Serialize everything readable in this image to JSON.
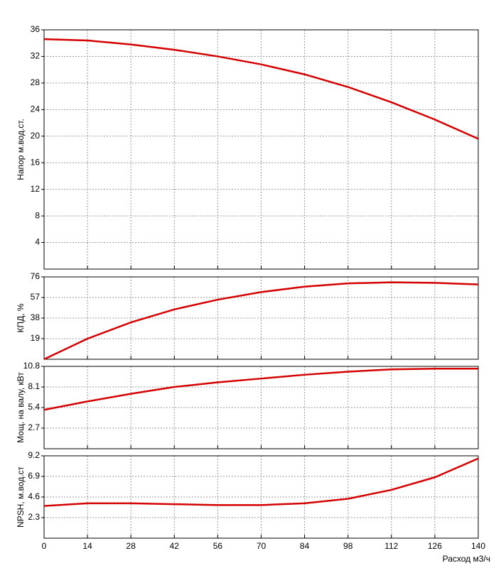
{
  "chart_data": [
    {
      "type": "line",
      "ylabel": "Напор м.вод.ст.",
      "x": [
        0,
        14,
        28,
        42,
        56,
        70,
        84,
        98,
        112,
        126,
        140
      ],
      "series": [
        {
          "color": "#d40000",
          "values": [
            34.6,
            34.4,
            33.8,
            33.0,
            32.0,
            30.8,
            29.3,
            27.4,
            25.1,
            22.5,
            19.6
          ]
        }
      ],
      "xlim": [
        0,
        140
      ],
      "ylim": [
        0,
        36
      ],
      "yticks": [
        4,
        8,
        12,
        16,
        20,
        24,
        28,
        32,
        36
      ],
      "grid": true
    },
    {
      "type": "line",
      "ylabel": "КПД, %",
      "x": [
        0,
        14,
        28,
        42,
        56,
        70,
        84,
        98,
        112,
        126,
        140
      ],
      "series": [
        {
          "color": "#d40000",
          "values": [
            0,
            19,
            34,
            46,
            55,
            62,
            67,
            70,
            71,
            70.5,
            69
          ]
        }
      ],
      "xlim": [
        0,
        140
      ],
      "ylim": [
        0,
        76
      ],
      "yticks": [
        19,
        38,
        57,
        76
      ],
      "grid": true
    },
    {
      "type": "line",
      "ylabel": "Мощ. на валу, кВт",
      "x": [
        0,
        14,
        28,
        42,
        56,
        70,
        84,
        98,
        112,
        126,
        140
      ],
      "series": [
        {
          "color": "#d40000",
          "values": [
            5.1,
            6.2,
            7.2,
            8.1,
            8.7,
            9.2,
            9.7,
            10.1,
            10.4,
            10.5,
            10.5
          ]
        }
      ],
      "xlim": [
        0,
        140
      ],
      "ylim": [
        0,
        10.8
      ],
      "yticks": [
        2.7,
        5.4,
        8.1,
        10.8
      ],
      "grid": true
    },
    {
      "type": "line",
      "ylabel": "NPSH, м.вод.ст",
      "xlabel": "Расход м3/ч",
      "x": [
        0,
        14,
        28,
        42,
        56,
        70,
        84,
        98,
        112,
        126,
        140
      ],
      "series": [
        {
          "color": "#d40000",
          "values": [
            3.6,
            3.9,
            3.9,
            3.8,
            3.7,
            3.7,
            3.9,
            4.4,
            5.4,
            6.8,
            8.9
          ]
        }
      ],
      "xlim": [
        0,
        140
      ],
      "ylim": [
        0,
        9.2
      ],
      "yticks": [
        2.3,
        4.6,
        6.9,
        9.2
      ],
      "xticks": [
        0,
        14,
        28,
        42,
        56,
        70,
        84,
        98,
        112,
        126,
        140
      ],
      "grid": true
    }
  ]
}
